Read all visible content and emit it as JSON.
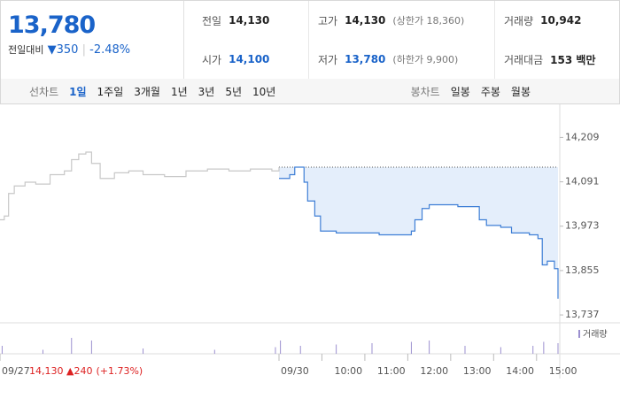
{
  "quote": {
    "price": "13,780",
    "change_label": "전일대비",
    "change": "350",
    "rate": "-2.48%"
  },
  "info": [
    [
      {
        "k": "전일",
        "v": "14,130"
      },
      {
        "k": "고가",
        "v": "14,130",
        "n": "(상한가 18,360)"
      },
      {
        "k": "거래량",
        "v": "10,942"
      }
    ],
    [
      {
        "k": "시가",
        "v": "14,100"
      },
      {
        "k": "저가",
        "v": "13,780",
        "n": "(하한가 9,900)"
      },
      {
        "k": "거래대금",
        "v": "153 백만"
      }
    ]
  ],
  "tabs": {
    "line_label": "선차트",
    "line": [
      "1일",
      "1주일",
      "3개월",
      "1년",
      "3년",
      "5년",
      "10년"
    ],
    "candle_label": "봉차트",
    "candle": [
      "일봉",
      "주봉",
      "월봉"
    ]
  },
  "prev_day_summary": {
    "close": "14,130",
    "change": "240",
    "rate": "(+1.73%)"
  },
  "chart_data": {
    "type": "line",
    "xlim": [
      0,
      780
    ],
    "ylim": [
      13716,
      14297
    ],
    "baseline": 14130,
    "yticks": [
      {
        "value": 14209,
        "label": "14,209"
      },
      {
        "value": 14091,
        "label": "14,091"
      },
      {
        "value": 13973,
        "label": "13,973"
      },
      {
        "value": 13855,
        "label": "13,855"
      },
      {
        "value": 13737,
        "label": "13,737"
      }
    ],
    "xticks": [
      {
        "value": 0,
        "label": "09/27"
      },
      {
        "value": 390,
        "label": "09/30"
      },
      {
        "value": 450,
        "label": "10:00"
      },
      {
        "value": 510,
        "label": "11:00"
      },
      {
        "value": 570,
        "label": "12:00"
      },
      {
        "value": 630,
        "label": "13:00"
      },
      {
        "value": 690,
        "label": "14:00"
      },
      {
        "value": 750,
        "label": "15:00"
      }
    ],
    "series": [
      {
        "color": "#c8c8c8",
        "x": [
          0,
          6,
          12,
          20,
          35,
          50,
          70,
          90,
          100,
          110,
          120,
          128,
          140,
          160,
          180,
          200,
          230,
          260,
          290,
          320,
          350,
          380,
          390
        ],
        "values": [
          13990,
          14000,
          14060,
          14080,
          14090,
          14085,
          14110,
          14120,
          14150,
          14165,
          14170,
          14140,
          14100,
          14115,
          14120,
          14110,
          14105,
          14120,
          14125,
          14120,
          14125,
          14120,
          14130
        ]
      },
      {
        "color": "#3f7fd6",
        "x": [
          390,
          405,
          412,
          420,
          425,
          430,
          440,
          448,
          470,
          500,
          530,
          560,
          575,
          580,
          590,
          600,
          620,
          640,
          660,
          670,
          680,
          700,
          715,
          740,
          752,
          758,
          765,
          775,
          780
        ],
        "values": [
          14100,
          14110,
          14130,
          14130,
          14090,
          14040,
          14000,
          13960,
          13955,
          13955,
          13950,
          13950,
          13960,
          13990,
          14020,
          14030,
          14030,
          14025,
          14025,
          13990,
          13975,
          13970,
          13955,
          13950,
          13940,
          13870,
          13880,
          13860,
          13780
        ]
      }
    ],
    "volume": {
      "name": "거래량",
      "color": "#9b8fcf",
      "ylim": [
        0,
        1000
      ],
      "x": [
        3,
        60,
        100,
        128,
        200,
        300,
        385,
        392,
        420,
        470,
        520,
        575,
        600,
        650,
        700,
        745,
        760,
        780
      ],
      "values": [
        300,
        150,
        600,
        500,
        200,
        150,
        250,
        500,
        300,
        350,
        400,
        450,
        500,
        300,
        250,
        300,
        450,
        400
      ]
    }
  }
}
